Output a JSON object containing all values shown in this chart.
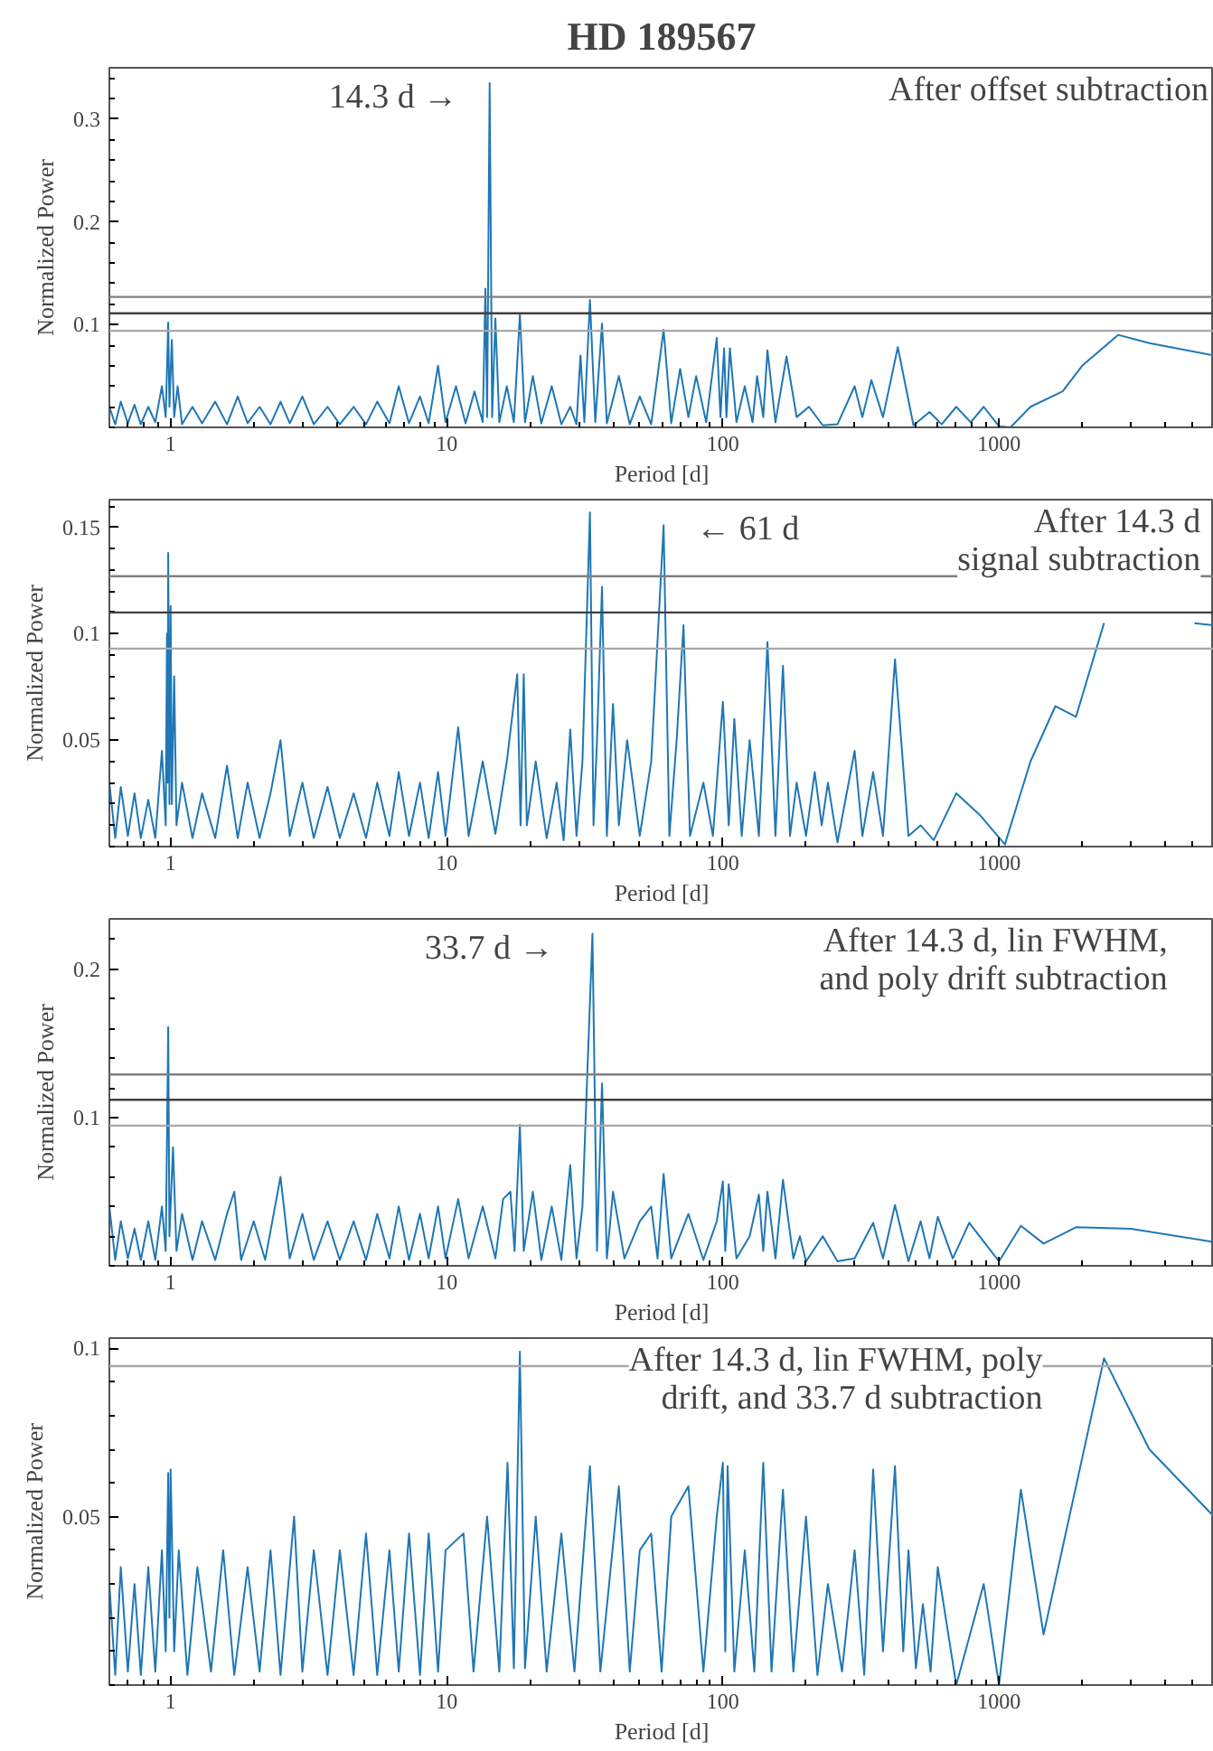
{
  "chart_data": [
    {
      "type": "line",
      "title": "HD 189567",
      "xlabel": "Period [d]",
      "ylabel": "Normalized Power",
      "log": "x",
      "xlim": [
        0.6,
        6000
      ],
      "xticks": [
        1,
        10,
        100,
        1000
      ],
      "ylim": [
        0,
        0.35
      ],
      "yticks": [
        0.1,
        0.2,
        0.3
      ],
      "x": [
        0.6,
        0.63,
        0.66,
        0.7,
        0.74,
        0.78,
        0.83,
        0.88,
        0.93,
        0.96,
        0.98,
        0.99,
        1.01,
        1.03,
        1.06,
        1.1,
        1.2,
        1.3,
        1.45,
        1.6,
        1.75,
        1.9,
        2.1,
        2.3,
        2.5,
        2.7,
        3.0,
        3.3,
        3.7,
        4.1,
        4.6,
        5.1,
        5.6,
        6.2,
        6.7,
        7.3,
        8.0,
        8.6,
        9.3,
        9.9,
        10.8,
        11.7,
        12.6,
        13.5,
        13.8,
        14.0,
        14.3,
        14.6,
        15.0,
        15.5,
        16.5,
        17.5,
        18.4,
        19.2,
        20.5,
        22,
        24,
        26,
        28,
        29.5,
        30.5,
        31.5,
        33,
        34.5,
        36.5,
        38,
        42,
        46,
        50,
        55,
        61,
        65,
        70,
        75,
        80,
        87,
        95,
        98,
        101,
        103,
        106,
        112,
        120,
        128,
        133,
        140,
        145,
        155,
        170,
        185,
        205,
        230,
        260,
        300,
        320,
        345,
        380,
        430,
        490,
        560,
        620,
        700,
        790,
        880,
        1000,
        1100,
        1300,
        1700,
        2000,
        2700,
        3500,
        6000
      ],
      "series": [
        {
          "color": "#1f77b4",
          "values": [
            0.02,
            0.003,
            0.025,
            0.004,
            0.022,
            0.003,
            0.02,
            0.005,
            0.04,
            0.01,
            0.102,
            0.02,
            0.085,
            0.01,
            0.04,
            0.003,
            0.02,
            0.004,
            0.025,
            0.003,
            0.03,
            0.004,
            0.02,
            0.003,
            0.025,
            0.004,
            0.03,
            0.003,
            0.02,
            0.003,
            0.02,
            0.003,
            0.025,
            0.004,
            0.04,
            0.004,
            0.03,
            0.004,
            0.06,
            0.005,
            0.04,
            0.004,
            0.035,
            0.005,
            0.135,
            0.01,
            0.335,
            0.01,
            0.106,
            0.005,
            0.04,
            0.005,
            0.11,
            0.005,
            0.05,
            0.004,
            0.04,
            0.003,
            0.02,
            0.003,
            0.07,
            0.005,
            0.124,
            0.005,
            0.101,
            0.004,
            0.05,
            0.003,
            0.03,
            0.003,
            0.095,
            0.004,
            0.057,
            0.01,
            0.05,
            0.005,
            0.087,
            0.01,
            0.077,
            0.01,
            0.077,
            0.005,
            0.04,
            0.005,
            0.05,
            0.01,
            0.075,
            0.005,
            0.069,
            0.01,
            0.02,
            0.002,
            0.003,
            0.04,
            0.01,
            0.046,
            0.01,
            0.078,
            0.002,
            0.015,
            0.003,
            0.02,
            0.005,
            0.02,
            0.001,
            0.0,
            0.02,
            0.035,
            0.06,
            0.09,
            0.082,
            0.07
          ]
        }
      ],
      "ref_lines": [
        {
          "axis": "y",
          "value": 0.127,
          "color": "#808080"
        },
        {
          "axis": "y",
          "value": 0.111,
          "color": "#404040"
        },
        {
          "axis": "y",
          "value": 0.094,
          "color": "#a8a8a8"
        }
      ],
      "annotations": [
        "14.3 d →",
        "After offset subtraction"
      ]
    },
    {
      "type": "line",
      "xlabel": "Period [d]",
      "ylabel": "Normalized Power",
      "log": "x",
      "xlim": [
        0.6,
        6000
      ],
      "xticks": [
        1,
        10,
        100,
        1000
      ],
      "ylim": [
        0,
        0.163
      ],
      "yticks": [
        0.05,
        0.1,
        0.15
      ],
      "x": [
        0.6,
        0.63,
        0.66,
        0.7,
        0.74,
        0.78,
        0.83,
        0.88,
        0.93,
        0.96,
        0.97,
        0.975,
        0.98,
        0.99,
        1.0,
        1.01,
        1.03,
        1.05,
        1.1,
        1.2,
        1.3,
        1.45,
        1.6,
        1.75,
        1.9,
        2.1,
        2.3,
        2.5,
        2.7,
        3.0,
        3.3,
        3.7,
        4.1,
        4.6,
        5.1,
        5.6,
        6.2,
        6.7,
        7.3,
        8.0,
        8.6,
        9.3,
        9.9,
        11,
        12,
        13.5,
        15,
        16.5,
        18,
        18.5,
        19,
        19.5,
        21,
        23,
        25,
        26.5,
        28,
        29.5,
        31,
        33,
        34,
        35,
        36.5,
        38,
        40,
        42,
        45,
        50,
        55,
        61,
        64,
        68,
        72,
        76,
        85,
        92,
        100,
        105,
        110,
        117,
        125,
        135,
        145,
        155,
        165,
        175,
        185,
        200,
        215,
        228,
        240,
        260,
        300,
        320,
        350,
        380,
        420,
        470,
        520,
        580,
        700,
        850,
        1050,
        1300,
        1600,
        1900,
        2400,
        3500,
        5100,
        6000
      ],
      "series": [
        {
          "color": "#1f77b4",
          "values": [
            0.03,
            0.004,
            0.028,
            0.005,
            0.025,
            0.004,
            0.022,
            0.004,
            0.045,
            0.01,
            0.1,
            0.03,
            0.138,
            0.02,
            0.113,
            0.02,
            0.08,
            0.01,
            0.03,
            0.004,
            0.025,
            0.004,
            0.038,
            0.004,
            0.03,
            0.004,
            0.025,
            0.05,
            0.005,
            0.03,
            0.004,
            0.028,
            0.004,
            0.025,
            0.004,
            0.03,
            0.005,
            0.035,
            0.005,
            0.03,
            0.004,
            0.035,
            0.005,
            0.056,
            0.005,
            0.04,
            0.006,
            0.04,
            0.081,
            0.01,
            0.081,
            0.01,
            0.04,
            0.004,
            0.03,
            0.003,
            0.055,
            0.005,
            0.04,
            0.157,
            0.01,
            0.05,
            0.122,
            0.005,
            0.067,
            0.01,
            0.05,
            0.005,
            0.04,
            0.151,
            0.005,
            0.05,
            0.104,
            0.005,
            0.03,
            0.005,
            0.068,
            0.01,
            0.06,
            0.005,
            0.05,
            0.005,
            0.096,
            0.005,
            0.085,
            0.005,
            0.03,
            0.005,
            0.035,
            0.01,
            0.03,
            0.002,
            0.045,
            0.005,
            0.035,
            0.005,
            0.088,
            0.005,
            0.01,
            0.003,
            0.025,
            0.015,
            0.001,
            0.04,
            0.066,
            0.061,
            0.105,
            null,
            0.105,
            0.104
          ]
        }
      ],
      "ref_lines": [
        {
          "axis": "y",
          "value": 0.127,
          "color": "#808080"
        },
        {
          "axis": "y",
          "value": 0.11,
          "color": "#404040"
        },
        {
          "axis": "y",
          "value": 0.093,
          "color": "#a8a8a8"
        }
      ],
      "annotations": [
        "← 61 d",
        "After 14.3 d\nsignal subtraction"
      ]
    },
    {
      "type": "line",
      "xlabel": "Period [d]",
      "ylabel": "Normalized Power",
      "log": "x",
      "xlim": [
        0.6,
        6000
      ],
      "xticks": [
        1,
        10,
        100,
        1000
      ],
      "ylim": [
        0,
        0.234
      ],
      "yticks": [
        0.1,
        0.2
      ],
      "x": [
        0.6,
        0.63,
        0.66,
        0.7,
        0.74,
        0.78,
        0.83,
        0.88,
        0.93,
        0.96,
        0.98,
        0.99,
        1.02,
        1.05,
        1.1,
        1.2,
        1.3,
        1.45,
        1.6,
        1.7,
        1.8,
        2.0,
        2.2,
        2.5,
        2.7,
        3.0,
        3.3,
        3.7,
        4.1,
        4.6,
        5.1,
        5.6,
        6.2,
        6.7,
        7.3,
        8.0,
        8.6,
        9.3,
        9.9,
        11,
        12,
        13.5,
        15,
        16,
        17,
        17.6,
        18.4,
        19,
        20.5,
        22,
        24,
        26,
        28,
        29.5,
        31,
        33.7,
        35,
        36.5,
        38,
        40,
        44,
        50,
        55,
        58,
        61,
        65,
        75,
        85,
        95,
        100,
        102,
        105,
        112,
        125,
        135,
        140,
        145,
        155,
        165,
        180,
        190,
        200,
        230,
        260,
        300,
        330,
        350,
        380,
        420,
        470,
        520,
        560,
        600,
        680,
        780,
        1000,
        1200,
        1450,
        1900,
        3000,
        6000
      ],
      "series": [
        {
          "color": "#1f77b4",
          "values": [
            0.04,
            0.004,
            0.03,
            0.005,
            0.025,
            0.004,
            0.03,
            0.004,
            0.04,
            0.01,
            0.161,
            0.02,
            0.08,
            0.01,
            0.035,
            0.004,
            0.03,
            0.004,
            0.035,
            0.05,
            0.004,
            0.03,
            0.004,
            0.06,
            0.005,
            0.035,
            0.004,
            0.03,
            0.004,
            0.03,
            0.004,
            0.035,
            0.005,
            0.04,
            0.004,
            0.035,
            0.005,
            0.04,
            0.005,
            0.045,
            0.005,
            0.04,
            0.005,
            0.045,
            0.05,
            0.01,
            0.095,
            0.01,
            0.05,
            0.004,
            0.04,
            0.004,
            0.068,
            0.005,
            0.04,
            0.224,
            0.01,
            0.123,
            0.005,
            0.05,
            0.005,
            0.03,
            0.04,
            0.005,
            0.062,
            0.005,
            0.035,
            0.004,
            0.03,
            0.057,
            0.01,
            0.055,
            0.005,
            0.02,
            0.048,
            0.01,
            0.05,
            0.005,
            0.058,
            0.005,
            0.02,
            0.003,
            0.02,
            0.003,
            0.005,
            0.02,
            0.029,
            0.005,
            0.041,
            0.003,
            0.03,
            0.005,
            0.033,
            0.005,
            0.029,
            0.003,
            0.027,
            0.015,
            0.026,
            0.025,
            0.016
          ]
        }
      ],
      "ref_lines": [
        {
          "axis": "y",
          "value": 0.129,
          "color": "#808080"
        },
        {
          "axis": "y",
          "value": 0.112,
          "color": "#404040"
        },
        {
          "axis": "y",
          "value": 0.0945,
          "color": "#a8a8a8"
        }
      ],
      "annotations": [
        "33.7 d →",
        "After 14.3 d, lin FWHM,\nand poly drift subtraction"
      ]
    },
    {
      "type": "line",
      "xlabel": "Period [d]",
      "ylabel": "Normalized Power",
      "log": "x",
      "xlim": [
        0.6,
        6000
      ],
      "xticks": [
        1,
        10,
        100,
        1000
      ],
      "ylim": [
        0,
        0.103
      ],
      "yticks": [
        0.05,
        0.1
      ],
      "x": [
        0.6,
        0.63,
        0.66,
        0.7,
        0.74,
        0.78,
        0.83,
        0.88,
        0.93,
        0.96,
        0.98,
        0.99,
        1.0,
        1.03,
        1.07,
        1.15,
        1.25,
        1.4,
        1.55,
        1.7,
        1.9,
        2.1,
        2.3,
        2.5,
        2.8,
        3.0,
        3.3,
        3.7,
        4.1,
        4.6,
        5.1,
        5.6,
        6.2,
        6.7,
        7.3,
        8.0,
        8.6,
        9.3,
        9.9,
        11.5,
        12.5,
        14,
        15.5,
        16.6,
        17.5,
        18.4,
        19.2,
        21,
        23,
        26,
        29,
        33,
        36,
        42,
        46,
        50,
        55,
        60,
        65,
        75,
        85,
        95,
        100,
        102,
        104,
        110,
        120,
        130,
        140,
        150,
        165,
        180,
        200,
        220,
        240,
        270,
        300,
        325,
        350,
        380,
        420,
        450,
        470,
        500,
        530,
        565,
        600,
        700,
        880,
        1000,
        1200,
        1450,
        2400,
        3500,
        6000
      ],
      "series": [
        {
          "color": "#1f77b4",
          "values": [
            0.03,
            0.003,
            0.035,
            0.004,
            0.03,
            0.003,
            0.035,
            0.004,
            0.04,
            0.01,
            0.063,
            0.02,
            0.064,
            0.01,
            0.04,
            0.003,
            0.035,
            0.004,
            0.04,
            0.003,
            0.035,
            0.004,
            0.04,
            0.003,
            0.05,
            0.004,
            0.04,
            0.003,
            0.04,
            0.003,
            0.045,
            0.003,
            0.04,
            0.004,
            0.045,
            0.003,
            0.045,
            0.004,
            0.04,
            0.045,
            0.004,
            0.05,
            0.004,
            0.066,
            0.005,
            0.099,
            0.005,
            0.05,
            0.004,
            0.045,
            0.004,
            0.065,
            0.004,
            0.059,
            0.004,
            0.04,
            0.045,
            0.004,
            0.05,
            0.059,
            0.004,
            0.05,
            0.066,
            0.01,
            0.065,
            0.004,
            0.04,
            0.004,
            0.066,
            0.004,
            0.058,
            0.004,
            0.05,
            0.003,
            0.03,
            0.004,
            0.04,
            0.003,
            0.064,
            0.01,
            0.065,
            0.01,
            0.04,
            0.005,
            0.024,
            0.004,
            0.035,
            0.0,
            0.03,
            0.0,
            0.058,
            0.015,
            0.097,
            0.07,
            0.05
          ]
        }
      ],
      "ref_lines": [
        {
          "axis": "y",
          "value": 0.0947,
          "color": "#a8a8a8"
        }
      ],
      "annotations": [
        "After 14.3 d, lin FWHM, poly\ndrift, and 33.7 d subtraction"
      ]
    }
  ]
}
